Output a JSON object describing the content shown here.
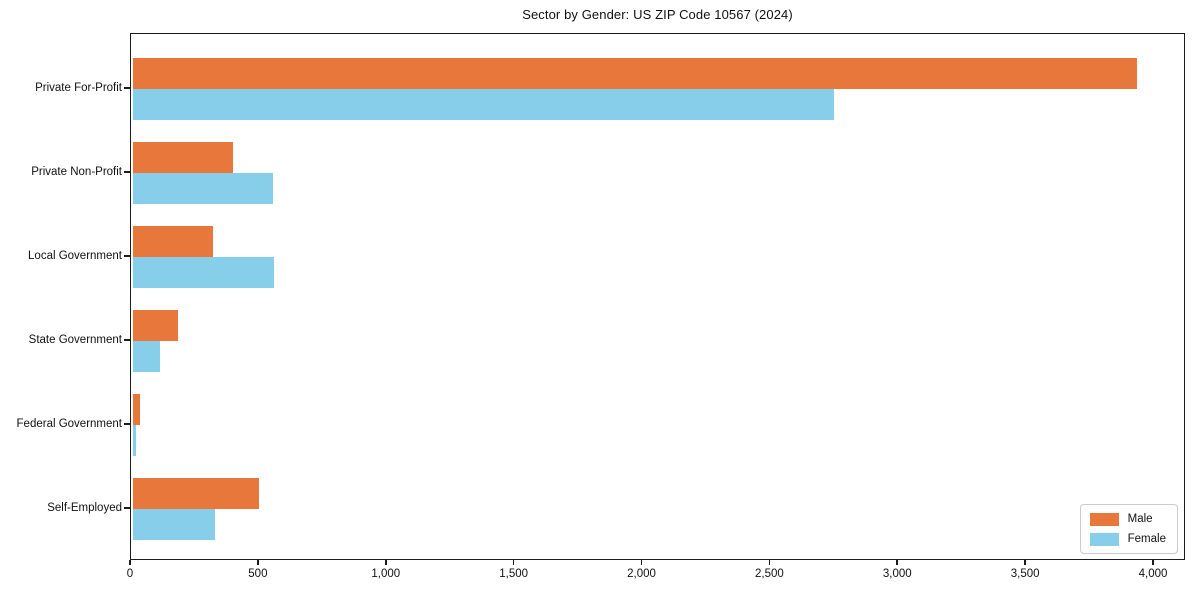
{
  "title": "Sector by Gender: US ZIP Code 10567 (2024)",
  "chart_data": {
    "type": "bar",
    "orientation": "horizontal",
    "title": "Sector by Gender: US ZIP Code 10567 (2024)",
    "categories": [
      "Private For-Profit",
      "Private Non-Profit",
      "Local Government",
      "State Government",
      "Federal Government",
      "Self-Employed"
    ],
    "series": [
      {
        "name": "Male",
        "color": "#e8773b",
        "values": [
          3935,
          400,
          320,
          185,
          35,
          500
        ]
      },
      {
        "name": "Female",
        "color": "#87ceeb",
        "values": [
          2750,
          555,
          560,
          115,
          20,
          330
        ]
      }
    ],
    "xlabel": "",
    "ylabel": "",
    "xlim": [
      0,
      4125
    ],
    "x_ticks": [
      0,
      500,
      1000,
      1500,
      2000,
      2500,
      3000,
      3500,
      4000
    ],
    "x_tick_labels": [
      "0",
      "500",
      "1,000",
      "1,500",
      "2,000",
      "2,500",
      "3,000",
      "3,500",
      "4,000"
    ],
    "grid": false,
    "legend_position": "lower right",
    "frame": "boxed"
  }
}
